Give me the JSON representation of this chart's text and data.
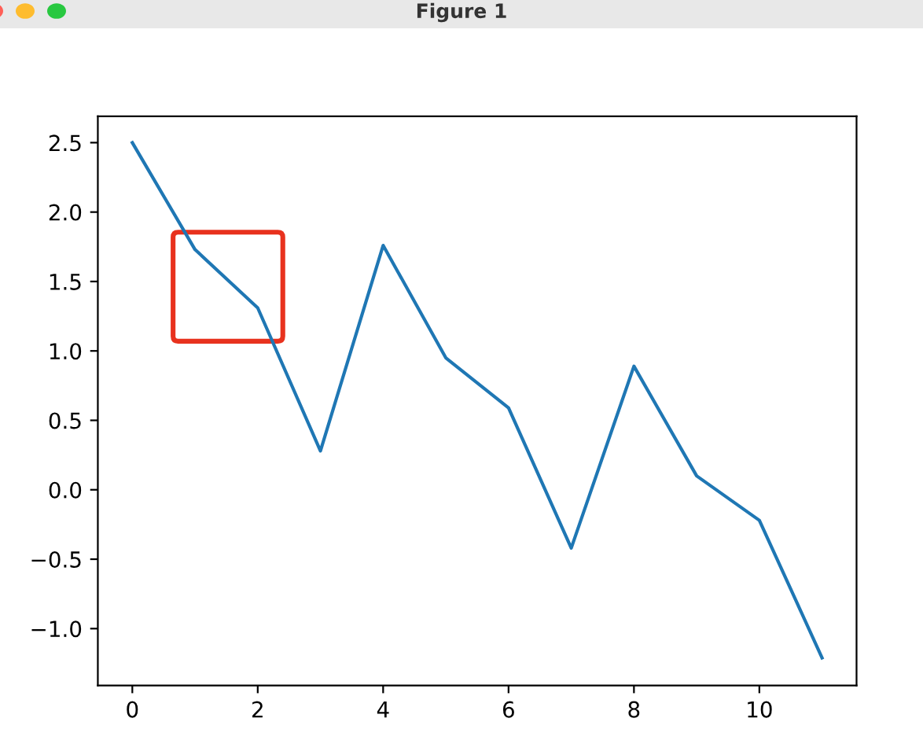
{
  "chart_data": {
    "type": "line",
    "title": "Figure 1",
    "x": [
      0,
      1,
      2,
      3,
      4,
      5,
      6,
      7,
      8,
      9,
      10,
      11
    ],
    "series": [
      {
        "color": "#1f77b4",
        "values": [
          2.5,
          1.73,
          1.31,
          0.28,
          1.76,
          0.95,
          0.59,
          -0.42,
          0.89,
          0.1,
          -0.22,
          -1.21
        ]
      }
    ],
    "xlim": [
      -0.55,
      11.55
    ],
    "xticks": [
      0,
      2,
      4,
      6,
      8,
      10
    ],
    "ylim": [
      -1.41,
      2.69
    ],
    "yticks": [
      {
        "value": -1.0,
        "label": "−1.0"
      },
      {
        "value": -0.5,
        "label": "−0.5"
      },
      {
        "value": 0.0,
        "label": "0.0"
      },
      {
        "value": 0.5,
        "label": "0.5"
      },
      {
        "value": 1.0,
        "label": "1.0"
      },
      {
        "value": 1.5,
        "label": "1.5"
      },
      {
        "value": 2.0,
        "label": "2.0"
      },
      {
        "value": 2.5,
        "label": "2.5"
      }
    ],
    "grid": false,
    "legend": false,
    "marker": "none",
    "line_style": "solid"
  }
}
